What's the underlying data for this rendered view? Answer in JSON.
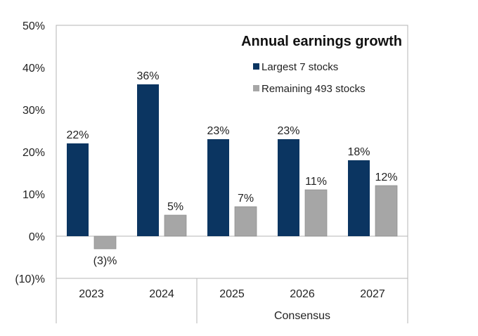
{
  "chart_data": {
    "type": "bar",
    "title": "Annual earnings growth",
    "categories": [
      "2023",
      "2024",
      "2025",
      "2026",
      "2027"
    ],
    "category_group_label": "Consensus",
    "category_group_members": [
      "2025",
      "2026",
      "2027"
    ],
    "series": [
      {
        "name": "Largest 7 stocks",
        "color": "#0b3561",
        "values": [
          22,
          36,
          23,
          23,
          18
        ],
        "labels": [
          "22%",
          "36%",
          "23%",
          "23%",
          "18%"
        ]
      },
      {
        "name": "Remaining 493 stocks",
        "color": "#a6a6a6",
        "values": [
          -3,
          5,
          7,
          11,
          12
        ],
        "labels": [
          "(3)%",
          "5%",
          "7%",
          "11%",
          "12%"
        ]
      }
    ],
    "plotted_values": [
      [
        21.7,
        35.8,
        22.7,
        23.0,
        17.8
      ],
      [
        -3.3,
        4.7,
        6.5,
        11.2,
        12.2
      ]
    ],
    "ylim": [
      -10,
      50
    ],
    "yticks": [
      50,
      40,
      30,
      20,
      10,
      0,
      -10
    ],
    "ytick_labels": [
      "50%",
      "40%",
      "30%",
      "20%",
      "10%",
      "0%",
      "(10)%"
    ],
    "xlabel": "",
    "ylabel": "",
    "grid": false,
    "legend_position": "top-right"
  }
}
